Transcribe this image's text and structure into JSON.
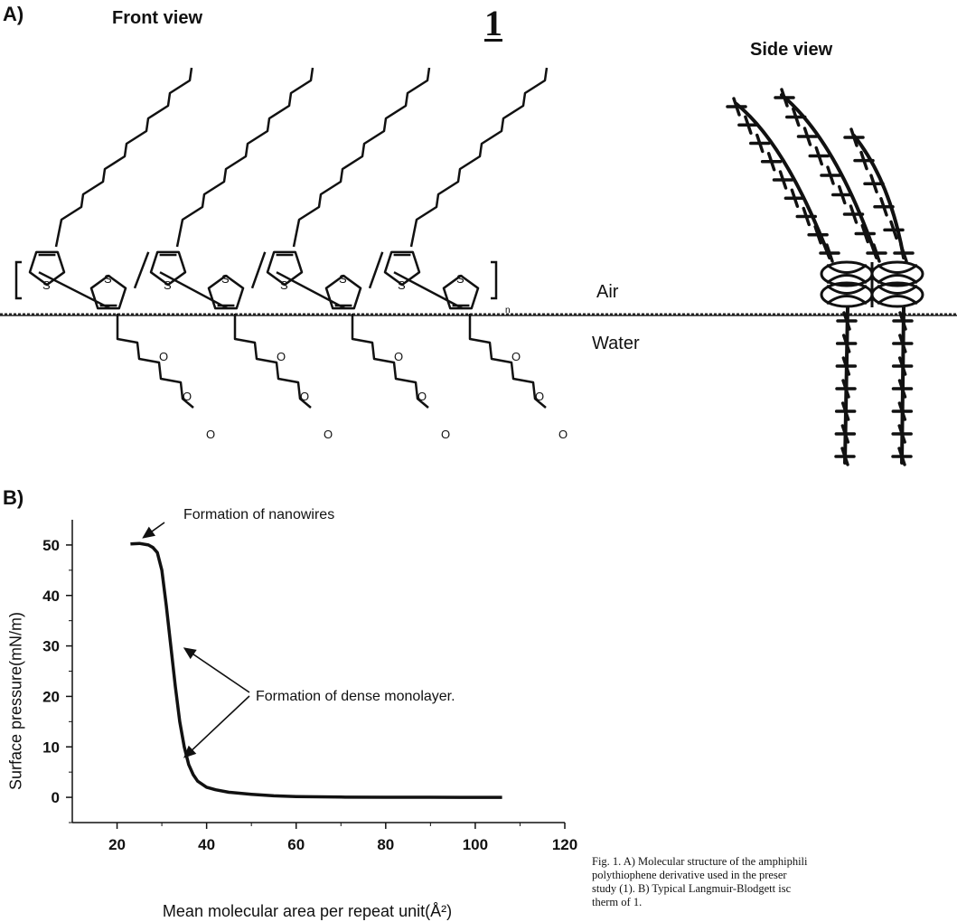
{
  "panel_a": {
    "label": "A)",
    "compound": "1",
    "front_view_title": "Front view",
    "side_view_title": "Side view",
    "air_label": "Air",
    "water_label": "Water",
    "sulfur": "S",
    "oxygen": "O",
    "repeat_n": "n"
  },
  "panel_b": {
    "label": "B)",
    "annotation_nanowires": "Formation of nanowires",
    "annotation_monolayer": "Formation of dense monolayer."
  },
  "caption": {
    "text": "Fig. 1. A) Molecular structure of the amphiphili\npolythiophene derivative used in the preser\nstudy (1). B) Typical Langmuir-Blodgett isc\ntherm of 1."
  },
  "chart_data": {
    "type": "line",
    "xlabel": "Mean molecular area per repeat unit(Å²)",
    "ylabel": "Surface pressure(mN/m)",
    "xlim": [
      10,
      120
    ],
    "ylim": [
      -5,
      55
    ],
    "xticks": [
      20,
      40,
      60,
      80,
      100,
      120
    ],
    "yticks": [
      0,
      10,
      20,
      30,
      40,
      50
    ],
    "series": [
      {
        "x": [
          23,
          25,
          27,
          28,
          29,
          30,
          31,
          32,
          33,
          34,
          35,
          36,
          37,
          38,
          40,
          42,
          45,
          50,
          55,
          60,
          70,
          80,
          90,
          100,
          106
        ],
        "y": [
          50.2,
          50.3,
          50.0,
          49.5,
          48.5,
          45,
          38,
          30,
          22,
          15,
          10,
          6.5,
          4.5,
          3.2,
          2.0,
          1.5,
          1.0,
          0.6,
          0.3,
          0.15,
          0.05,
          0.02,
          0.01,
          0,
          0
        ]
      }
    ]
  }
}
